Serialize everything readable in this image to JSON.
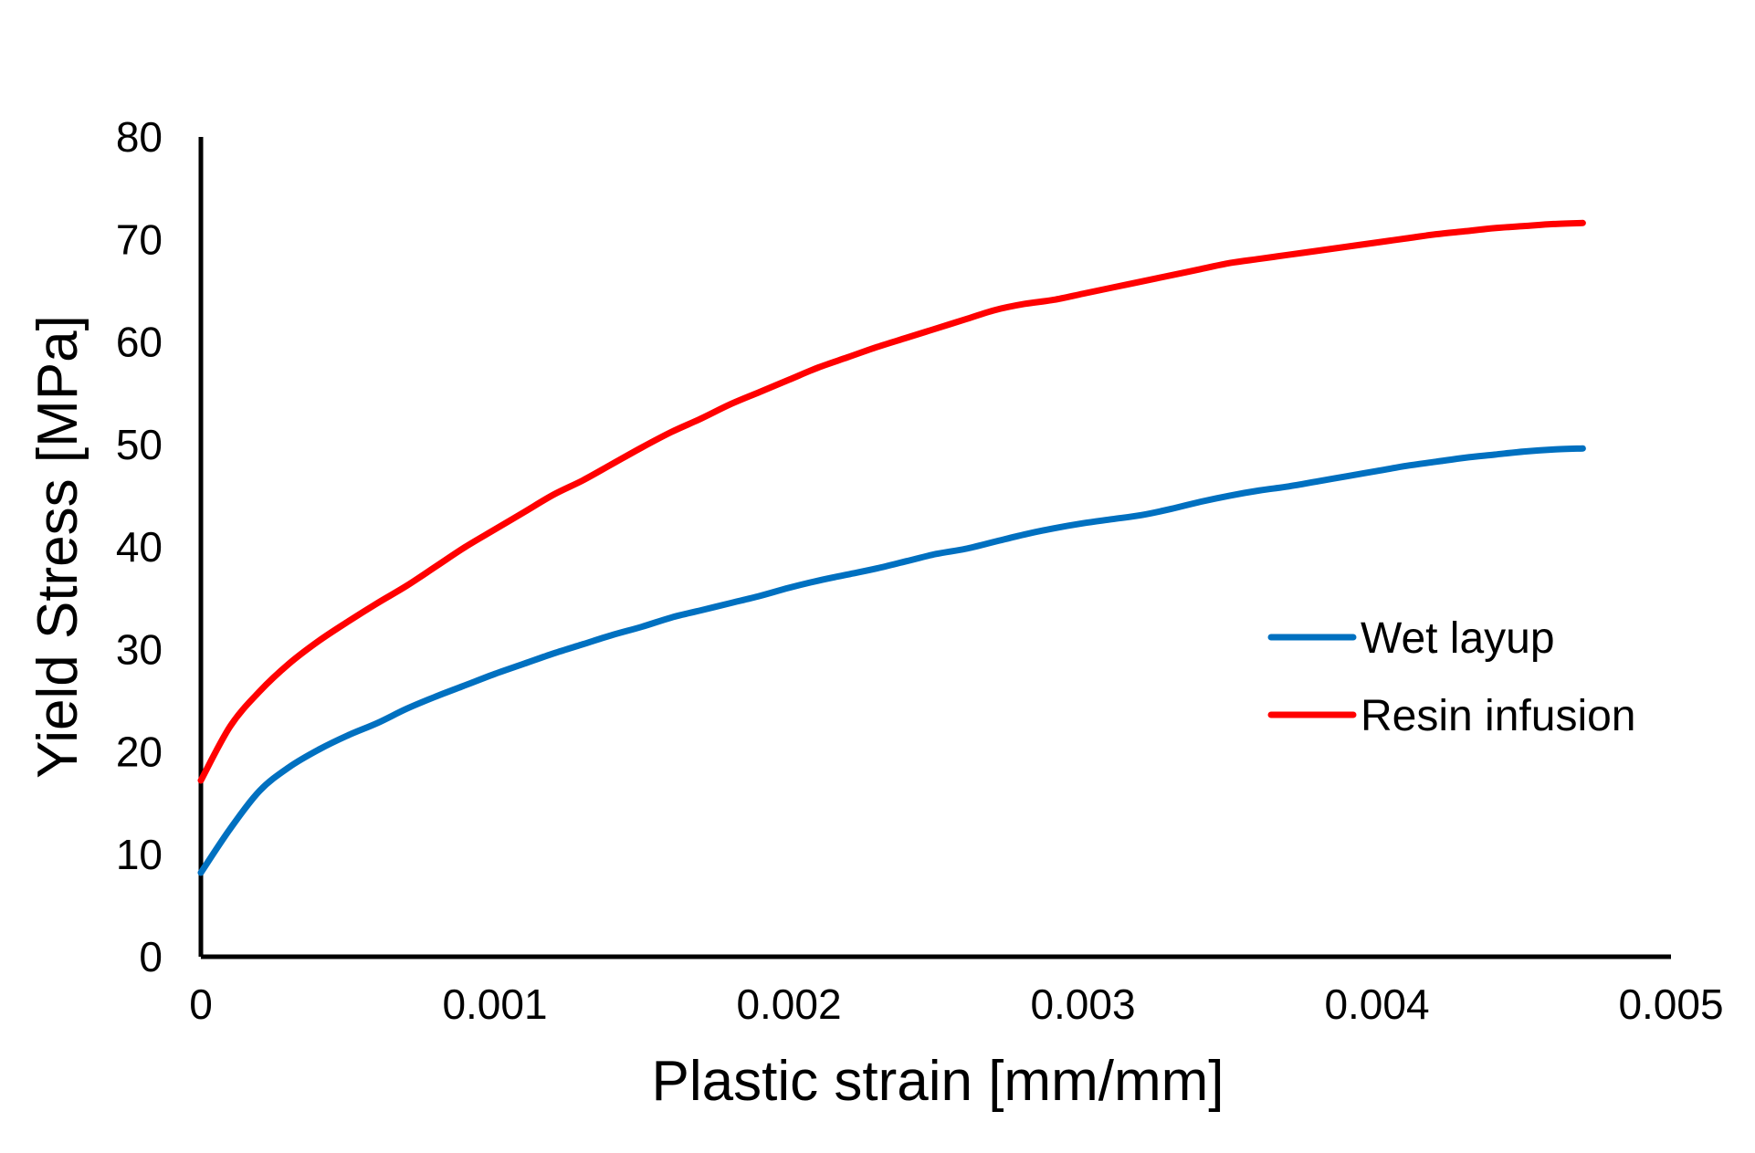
{
  "chart_data": {
    "type": "line",
    "title": "",
    "xlabel": "Plastic strain [mm/mm]",
    "ylabel": "Yield Stress [MPa]",
    "xlim": [
      0,
      0.005
    ],
    "ylim": [
      0,
      80
    ],
    "xticks": [
      0,
      0.001,
      0.002,
      0.003,
      0.004,
      0.005
    ],
    "xtick_labels": [
      "0",
      "0.001",
      "0.002",
      "0.003",
      "0.004",
      "0.005"
    ],
    "yticks": [
      0,
      10,
      20,
      30,
      40,
      50,
      60,
      70,
      80
    ],
    "ytick_labels": [
      "0",
      "10",
      "20",
      "30",
      "40",
      "50",
      "60",
      "70",
      "80"
    ],
    "grid": false,
    "legend_position": "right",
    "series": [
      {
        "name": "Wet layup",
        "color": "#0070c0",
        "x": [
          0,
          0.0001,
          0.0002,
          0.0003,
          0.0004,
          0.0005,
          0.0006,
          0.0007,
          0.0008,
          0.0009,
          0.001,
          0.0011,
          0.0012,
          0.0013,
          0.0014,
          0.0015,
          0.0016,
          0.0017,
          0.0018,
          0.0019,
          0.002,
          0.0021,
          0.0022,
          0.0023,
          0.0024,
          0.0025,
          0.0026,
          0.0027,
          0.0028,
          0.0029,
          0.003,
          0.0031,
          0.0032,
          0.0033,
          0.0034,
          0.0035,
          0.0036,
          0.0037,
          0.0038,
          0.0039,
          0.004,
          0.0041,
          0.0042,
          0.0043,
          0.0044,
          0.0045,
          0.0046,
          0.0047
        ],
        "y": [
          8.2,
          12.5,
          16.2,
          18.5,
          20.2,
          21.6,
          22.8,
          24.2,
          25.4,
          26.5,
          27.6,
          28.6,
          29.6,
          30.5,
          31.4,
          32.2,
          33.1,
          33.8,
          34.5,
          35.2,
          36.0,
          36.7,
          37.3,
          37.9,
          38.6,
          39.3,
          39.8,
          40.5,
          41.2,
          41.8,
          42.3,
          42.7,
          43.1,
          43.7,
          44.4,
          45.0,
          45.5,
          45.9,
          46.4,
          46.9,
          47.4,
          47.9,
          48.3,
          48.7,
          49.0,
          49.3,
          49.5,
          49.6
        ]
      },
      {
        "name": "Resin infusion",
        "color": "#ff0000",
        "x": [
          0,
          0.0001,
          0.0002,
          0.0003,
          0.0004,
          0.0005,
          0.0006,
          0.0007,
          0.0008,
          0.0009,
          0.001,
          0.0011,
          0.0012,
          0.0013,
          0.0014,
          0.0015,
          0.0016,
          0.0017,
          0.0018,
          0.0019,
          0.002,
          0.0021,
          0.0022,
          0.0023,
          0.0024,
          0.0025,
          0.0026,
          0.0027,
          0.0028,
          0.0029,
          0.003,
          0.0031,
          0.0032,
          0.0033,
          0.0034,
          0.0035,
          0.0036,
          0.0037,
          0.0038,
          0.0039,
          0.004,
          0.0041,
          0.0042,
          0.0043,
          0.0044,
          0.0045,
          0.0046,
          0.0047
        ],
        "y": [
          17.2,
          22.5,
          25.9,
          28.6,
          30.8,
          32.7,
          34.5,
          36.2,
          38.1,
          40.0,
          41.7,
          43.4,
          45.1,
          46.5,
          48.1,
          49.7,
          51.2,
          52.5,
          53.9,
          55.1,
          56.3,
          57.5,
          58.5,
          59.5,
          60.4,
          61.3,
          62.2,
          63.1,
          63.7,
          64.1,
          64.7,
          65.3,
          65.9,
          66.5,
          67.1,
          67.7,
          68.1,
          68.5,
          68.9,
          69.3,
          69.7,
          70.1,
          70.5,
          70.8,
          71.1,
          71.3,
          71.5,
          71.6
        ]
      }
    ]
  }
}
